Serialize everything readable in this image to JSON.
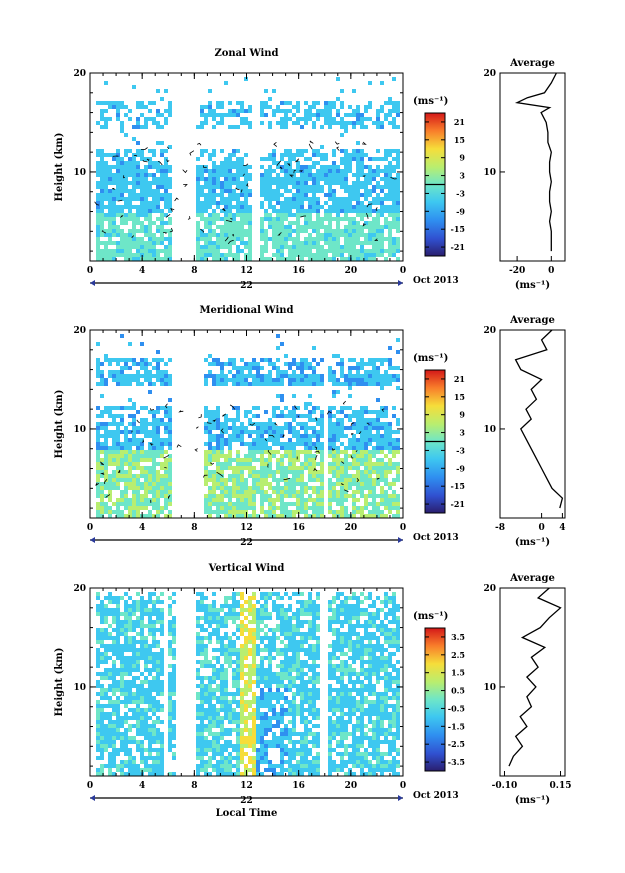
{
  "chart_data": [
    {
      "type": "heatmap",
      "id": "zonal",
      "title": "Zonal Wind",
      "ylabel": "Height (km)",
      "xticks": [
        "0",
        "4",
        "8",
        "12",
        "16",
        "20",
        "0"
      ],
      "yticks": [
        "20",
        "10"
      ],
      "xlim": [
        0,
        24
      ],
      "ylim": [
        1,
        20
      ],
      "date_label": "22",
      "month_label": "Oct 2013",
      "colorbar": {
        "unit": "(ms⁻¹)",
        "ticks": [
          "21",
          "15",
          "9",
          "3",
          "-3",
          "-9",
          "-15",
          "-21"
        ],
        "range": [
          -24,
          24
        ],
        "zero_line": true
      },
      "profile": {
        "title": "Average",
        "xticks": [
          "-20",
          "0"
        ],
        "xlim": [
          -30,
          8
        ],
        "yticks": [
          "20",
          "10"
        ],
        "unit": "(ms⁻¹)",
        "heights": [
          2,
          3,
          4,
          5,
          6,
          7,
          8,
          9,
          10,
          11,
          12,
          13,
          14,
          15,
          16,
          16.5,
          17,
          17.5,
          18,
          19,
          20
        ],
        "values": [
          0,
          0,
          0,
          -1,
          0,
          -1,
          -1,
          0,
          -1,
          -1,
          0,
          -2,
          -2,
          -3,
          -6,
          -1,
          -20,
          -14,
          -4,
          0,
          3
        ]
      }
    },
    {
      "type": "heatmap",
      "id": "meridional",
      "title": "Meridional Wind",
      "ylabel": "Height (km)",
      "xticks": [
        "0",
        "4",
        "8",
        "12",
        "16",
        "20",
        "0"
      ],
      "yticks": [
        "20",
        "10"
      ],
      "xlim": [
        0,
        24
      ],
      "ylim": [
        1,
        20
      ],
      "date_label": "22",
      "month_label": "Oct 2013",
      "colorbar": {
        "unit": "(ms⁻¹)",
        "ticks": [
          "21",
          "15",
          "9",
          "3",
          "-3",
          "-9",
          "-15",
          "-21"
        ],
        "range": [
          -24,
          24
        ],
        "zero_line": true
      },
      "profile": {
        "title": "Average",
        "xticks": [
          "-8",
          "0",
          "4"
        ],
        "xlim": [
          -8,
          4.5
        ],
        "yticks": [
          "20",
          "10"
        ],
        "unit": "(ms⁻¹)",
        "heights": [
          2,
          3,
          4,
          5,
          6,
          7,
          8,
          9,
          10,
          11,
          12,
          13,
          14,
          15,
          16,
          17,
          18,
          19,
          20
        ],
        "values": [
          3.5,
          4,
          2,
          1,
          0,
          -1,
          -2,
          -3,
          -4,
          -2,
          -3,
          -1,
          -2,
          0,
          -4,
          -5,
          1,
          0,
          2
        ]
      }
    },
    {
      "type": "heatmap",
      "id": "vertical",
      "title": "Vertical Wind",
      "ylabel": "Height (km)",
      "xlabel": "Local Time",
      "xticks": [
        "0",
        "4",
        "8",
        "12",
        "16",
        "20",
        "0"
      ],
      "yticks": [
        "20",
        "10"
      ],
      "xlim": [
        0,
        24
      ],
      "ylim": [
        1,
        20
      ],
      "date_label": "22",
      "month_label": "Oct 2013",
      "colorbar": {
        "unit": "(ms⁻¹)",
        "ticks": [
          "3.5",
          "2.5",
          "1.5",
          "0.5",
          "-0.5",
          "-1.5",
          "-2.5",
          "-3.5"
        ],
        "range": [
          -4,
          4
        ],
        "zero_line": false
      },
      "profile": {
        "title": "Average",
        "xticks": [
          "-0.10",
          "0.15"
        ],
        "xlim": [
          -0.12,
          0.17
        ],
        "yticks": [
          "20",
          "10"
        ],
        "unit": "(ms⁻¹)",
        "heights": [
          2,
          3,
          4,
          5,
          6,
          7,
          8,
          9,
          10,
          11,
          12,
          13,
          14,
          15,
          16,
          17,
          18,
          19,
          20
        ],
        "values": [
          -0.08,
          -0.06,
          -0.02,
          -0.05,
          0.0,
          -0.03,
          0.02,
          0.0,
          0.04,
          0.0,
          0.05,
          0.02,
          0.08,
          -0.02,
          0.06,
          0.1,
          0.15,
          0.05,
          0.1
        ]
      }
    }
  ]
}
